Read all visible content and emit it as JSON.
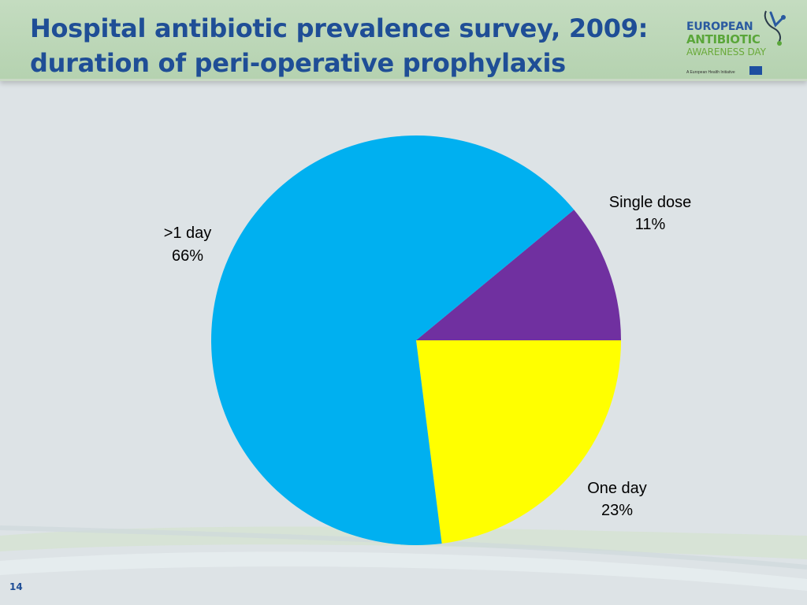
{
  "slide": {
    "title_line1": "Hospital antibiotic prevalence survey, 2009:",
    "title_line2": "duration of peri-operative prophylaxis",
    "page_number": "14"
  },
  "logo": {
    "line1": "EUROPEAN",
    "line2": "ANTIBIOTIC",
    "line3": "AWARENESS DAY",
    "tagline": "A European Health Initiative",
    "colors": {
      "blue": "#2a5aa0",
      "green": "#5aa63a"
    }
  },
  "chart_data": {
    "type": "pie",
    "title": "",
    "slices": [
      {
        "name": "Single dose",
        "value": 11,
        "label": "11%",
        "color": "#7030a0"
      },
      {
        "name": "One day",
        "value": 23,
        "label": "23%",
        "color": "#ffff00"
      },
      {
        "name": ">1 day",
        "value": 66,
        "label": "66%",
        "color": "#00b0f0"
      }
    ],
    "start_direction": "3 o'clock",
    "direction": "counterclockwise from 3 o'clock: single dose on top, one day below"
  }
}
